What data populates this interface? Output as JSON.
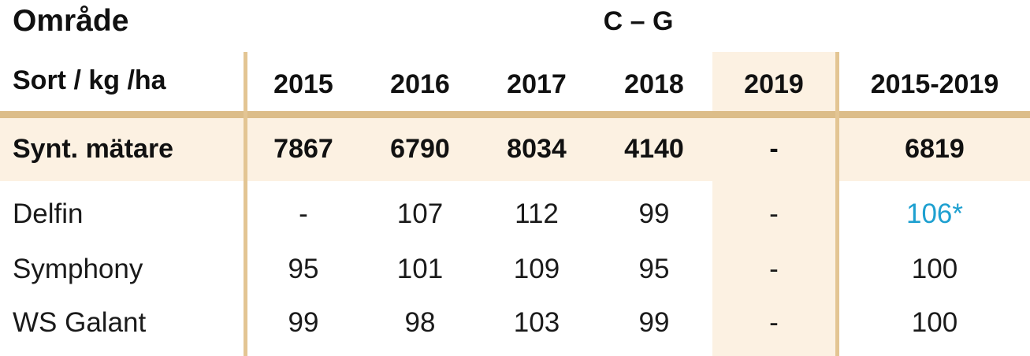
{
  "title": "Område",
  "region": "C – G",
  "header": {
    "label": "Sort / kg /ha",
    "columns": [
      "2015",
      "2016",
      "2017",
      "2018",
      "2019",
      "2015-2019"
    ]
  },
  "reference_row": {
    "label": "Synt. mätare",
    "values": [
      "7867",
      "6790",
      "8034",
      "4140",
      "-",
      "6819"
    ]
  },
  "rows": [
    {
      "label": "Delfin",
      "values": [
        "-",
        "107",
        "112",
        "99",
        "-",
        "106*"
      ]
    },
    {
      "label": "Symphony",
      "values": [
        "95",
        "101",
        "109",
        "95",
        "-",
        "100"
      ]
    },
    {
      "label": "WS Galant",
      "values": [
        "99",
        "98",
        "103",
        "99",
        "-",
        "100"
      ]
    }
  ],
  "colors": {
    "highlight_bg": "#fcf1e2",
    "rule": "#dcbd89",
    "accent": "#1ea0d0"
  }
}
